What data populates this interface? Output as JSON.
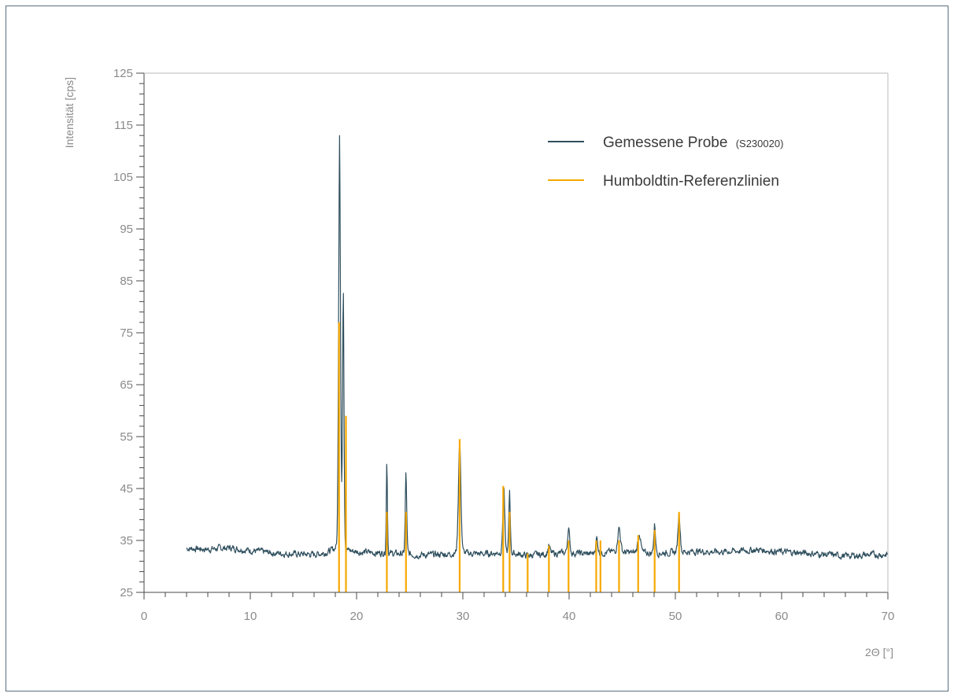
{
  "chart_data": {
    "type": "line",
    "title": "",
    "xlabel": "2Θ [°]",
    "ylabel": "Intensität [cps]",
    "xlim": [
      0,
      70
    ],
    "ylim": [
      25,
      125
    ],
    "x_ticks": [
      0,
      10,
      20,
      30,
      40,
      50,
      60,
      70
    ],
    "y_ticks": [
      25,
      35,
      45,
      55,
      65,
      75,
      85,
      95,
      105,
      115,
      125
    ],
    "grid": false,
    "legend_position": "top-right",
    "colors": {
      "sample": "#2f4f5e",
      "reference": "#f7a800",
      "axis": "#4a4a4a",
      "frame": "#5a6e7c"
    },
    "legend": [
      {
        "label": "Gemessene Probe",
        "sub": "(S230020)"
      },
      {
        "label": "Humboldtin-Referenzlinien",
        "sub": ""
      }
    ],
    "series": [
      {
        "baseline_x": [
          4,
          6,
          8,
          10,
          12,
          14,
          16,
          17,
          18,
          20,
          22,
          24,
          26,
          28,
          30,
          32,
          34,
          36,
          38,
          40,
          42,
          44,
          46,
          48,
          50,
          52,
          54,
          56,
          58,
          60,
          62,
          64,
          66,
          68,
          70
        ],
        "baseline_y": [
          33.5,
          33.3,
          33.6,
          33.1,
          32.6,
          32.4,
          32.3,
          32.6,
          33.2,
          32.8,
          32.6,
          32.4,
          32.2,
          32.3,
          32.5,
          32.4,
          32.7,
          32.1,
          32.4,
          32.6,
          32.4,
          32.8,
          32.6,
          32.5,
          32.7,
          32.9,
          32.8,
          33.0,
          33.2,
          32.8,
          32.6,
          32.3,
          32.0,
          32.2,
          32.3
        ],
        "peaks": [
          {
            "x": 18.4,
            "y": 113.5,
            "w": 0.13
          },
          {
            "x": 18.75,
            "y": 83.5,
            "w": 0.1
          },
          {
            "x": 22.85,
            "y": 50.5,
            "w": 0.08
          },
          {
            "x": 24.65,
            "y": 48.0,
            "w": 0.1
          },
          {
            "x": 29.7,
            "y": 54.5,
            "w": 0.17
          },
          {
            "x": 33.85,
            "y": 45.5,
            "w": 0.13
          },
          {
            "x": 34.4,
            "y": 44.5,
            "w": 0.1
          },
          {
            "x": 38.1,
            "y": 34.0,
            "w": 0.15
          },
          {
            "x": 39.95,
            "y": 37.3,
            "w": 0.15
          },
          {
            "x": 42.6,
            "y": 35.5,
            "w": 0.15
          },
          {
            "x": 44.7,
            "y": 37.5,
            "w": 0.2
          },
          {
            "x": 46.6,
            "y": 36.5,
            "w": 0.2
          },
          {
            "x": 48.05,
            "y": 38.0,
            "w": 0.13
          },
          {
            "x": 50.35,
            "y": 40.5,
            "w": 0.15
          }
        ]
      },
      {
        "x": [
          18.35,
          19.0,
          22.85,
          24.65,
          29.7,
          33.8,
          34.4,
          36.1,
          38.1,
          39.95,
          42.55,
          42.95,
          44.7,
          46.5,
          48.05,
          50.35
        ],
        "y": [
          77,
          59,
          40.5,
          40.5,
          54.5,
          45.5,
          40.5,
          32.5,
          34,
          35,
          35,
          35,
          35,
          36,
          37,
          40.5
        ]
      }
    ]
  }
}
